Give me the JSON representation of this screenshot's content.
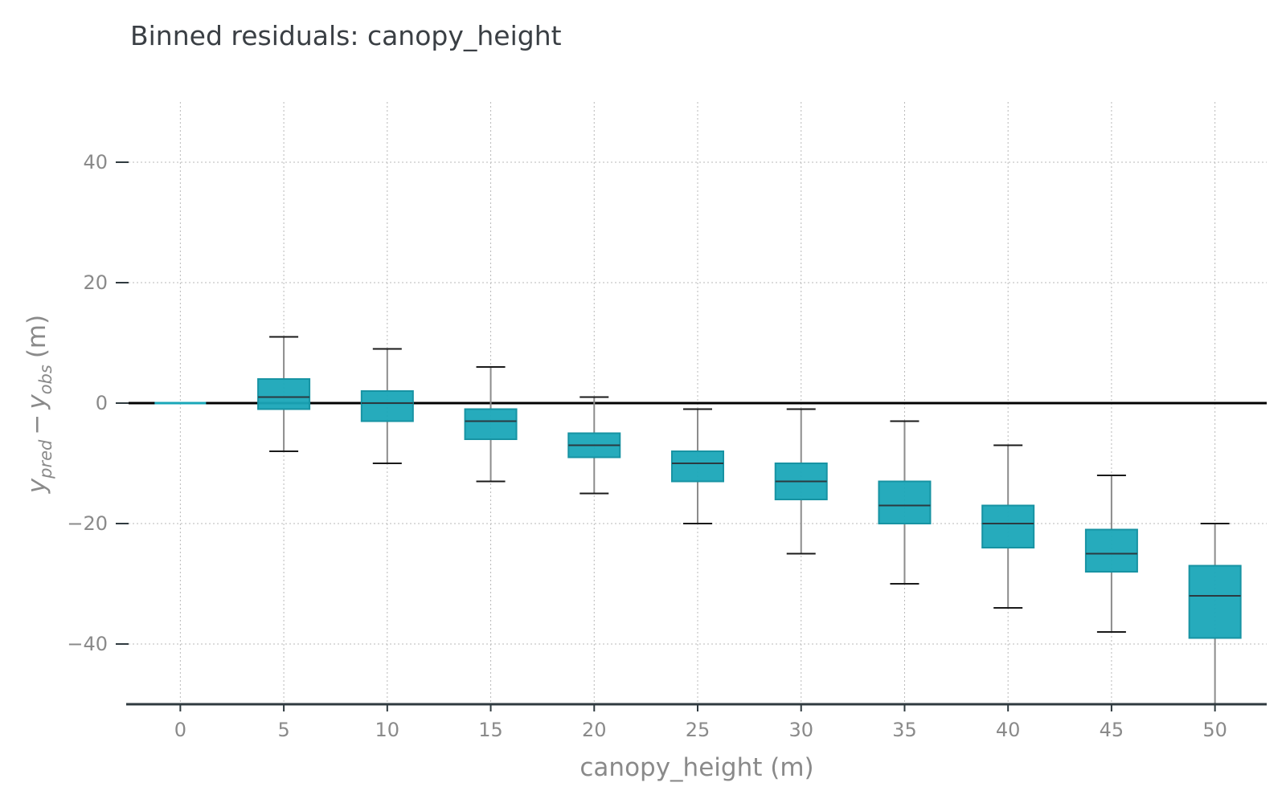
{
  "chart_data": {
    "type": "box",
    "title": "Binned residuals: canopy_height",
    "xlabel": "canopy_height (m)",
    "ylabel": {
      "main": "y",
      "sub_pred": "pred",
      "minus": "−",
      "sub_obs": "obs",
      "unit": "(m)"
    },
    "x_ticks": [
      "0",
      "5",
      "10",
      "15",
      "20",
      "25",
      "30",
      "35",
      "40",
      "45",
      "50"
    ],
    "y_ticks": [
      "40",
      "20",
      "0",
      "−20",
      "−40"
    ],
    "ylim": [
      -50,
      50
    ],
    "xlim": [
      -2.5,
      52.5
    ],
    "grid": true,
    "reference_line": 0,
    "colors": {
      "box_fill": "#1aa7b8",
      "box_edge": "#1793a3",
      "median": "#2b3a40",
      "whisker": "#8c8c8c",
      "cap": "#1a1a1a",
      "zero_line": "#000000"
    },
    "boxes": [
      {
        "x": 0,
        "whislo": 0,
        "q1": 0,
        "med": 0,
        "q3": 0,
        "whishi": 0
      },
      {
        "x": 5,
        "whislo": -8,
        "q1": -1,
        "med": 1,
        "q3": 4,
        "whishi": 11
      },
      {
        "x": 10,
        "whislo": -10,
        "q1": -3,
        "med": 0,
        "q3": 2,
        "whishi": 9
      },
      {
        "x": 15,
        "whislo": -13,
        "q1": -6,
        "med": -3,
        "q3": -1,
        "whishi": 6
      },
      {
        "x": 20,
        "whislo": -15,
        "q1": -9,
        "med": -7,
        "q3": -5,
        "whishi": 1
      },
      {
        "x": 25,
        "whislo": -20,
        "q1": -13,
        "med": -10,
        "q3": -8,
        "whishi": -1
      },
      {
        "x": 30,
        "whislo": -25,
        "q1": -16,
        "med": -13,
        "q3": -10,
        "whishi": -1
      },
      {
        "x": 35,
        "whislo": -30,
        "q1": -20,
        "med": -17,
        "q3": -13,
        "whishi": -3
      },
      {
        "x": 40,
        "whislo": -34,
        "q1": -24,
        "med": -20,
        "q3": -17,
        "whishi": -7
      },
      {
        "x": 45,
        "whislo": -38,
        "q1": -28,
        "med": -25,
        "q3": -21,
        "whishi": -12
      },
      {
        "x": 50,
        "whislo": -50,
        "q1": -39,
        "med": -32,
        "q3": -27,
        "whishi": -20
      }
    ]
  }
}
